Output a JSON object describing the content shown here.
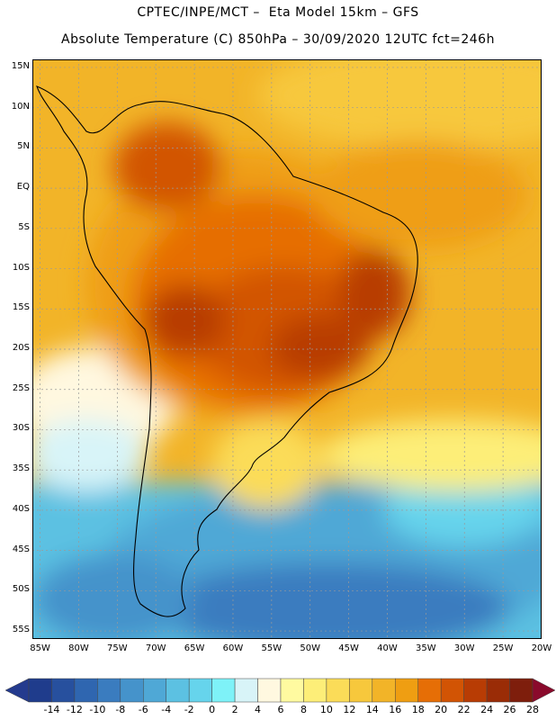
{
  "header": {
    "line1": "CPTEC/INPE/MCT –  Eta Model 15km – GFS",
    "line2": "Absolute Temperature (C) 850hPa – 30/09/2020 12UTC fct=246h"
  },
  "map": {
    "lat_labels": [
      "15N",
      "10N",
      "5N",
      "EQ",
      "5S",
      "10S",
      "15S",
      "20S",
      "25S",
      "30S",
      "35S",
      "40S",
      "45S",
      "50S",
      "55S"
    ],
    "lon_labels": [
      "85W",
      "80W",
      "75W",
      "70W",
      "65W",
      "60W",
      "55W",
      "50W",
      "45W",
      "40W",
      "35W",
      "30W",
      "25W",
      "20W"
    ]
  },
  "colorbar": {
    "labels": [
      "-14",
      "-12",
      "-10",
      "-8",
      "-6",
      "-4",
      "-2",
      "0",
      "2",
      "4",
      "6",
      "8",
      "10",
      "12",
      "14",
      "16",
      "18",
      "20",
      "22",
      "24",
      "26",
      "28"
    ],
    "colors": [
      "#1f3c8c",
      "#27509e",
      "#2f66b0",
      "#3a7cbf",
      "#4593cb",
      "#4fa8d6",
      "#5cc1e2",
      "#66d4ec",
      "#7ef2f8",
      "#d8f4f8",
      "#fff8e0",
      "#fffaa0",
      "#fdee78",
      "#fbdc58",
      "#f7c83c",
      "#f2b428",
      "#ef9e12",
      "#e66e06",
      "#d25404",
      "#b83c04",
      "#9a2c06",
      "#7e1e0c"
    ],
    "under_color": "#243b8e",
    "over_color": "#8a0a2c"
  }
}
